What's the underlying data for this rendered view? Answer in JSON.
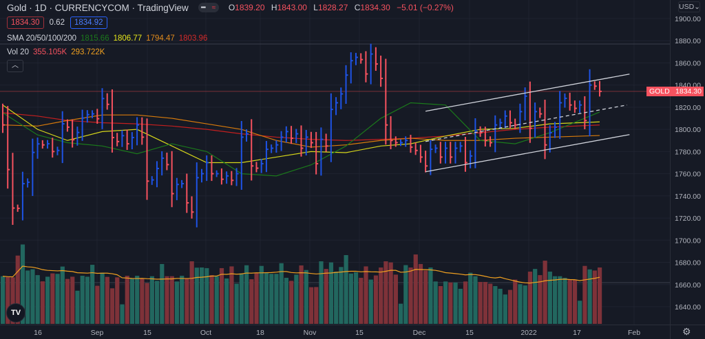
{
  "header": {
    "title": "Gold · 1D · CURRENCYCOM · TradingView",
    "ohlc": {
      "o_label": "O",
      "o": "1839.20",
      "h_label": "H",
      "h": "1843.00",
      "l_label": "L",
      "l": "1828.27",
      "c_label": "C",
      "c": "1834.30",
      "change": "−5.01 (−0.27%)"
    },
    "sell_price": "1834.30",
    "spread": "0.62",
    "buy_price": "1834.92"
  },
  "legend": {
    "sma_label": "SMA 20/50/100/200",
    "sma20": "1815.66",
    "sma50": "1806.77",
    "sma100": "1794.47",
    "sma200": "1803.96",
    "vol_label": "Vol 20",
    "vol": "355.105K",
    "vol_ma": "293.722K",
    "collapse_icon": "chevron-up-icon"
  },
  "price_axis": {
    "currency": "USD",
    "labels": [
      "1900.00",
      "1880.00",
      "1860.00",
      "1840.00",
      "1820.00",
      "1800.00",
      "1780.00",
      "1760.00",
      "1740.00",
      "1720.00",
      "1700.00",
      "1680.00",
      "1660.00",
      "1640.00"
    ],
    "last_symbol": "GOLD",
    "last_price": "1834.30"
  },
  "colors": {
    "up": "#1e53e5",
    "down": "#f7525f",
    "vol_up": "#22675f",
    "vol_down": "#7e3239",
    "sma20": "#1b7a1b",
    "sma50": "#d6d61a",
    "sma100": "#d97b0b",
    "sma200": "#c41f1f",
    "vol_ma": "#f0a020",
    "background": "#161a25"
  },
  "chart_data": {
    "type": "ohlc-bar",
    "symbol": "Gold",
    "interval": "1D",
    "ylim": [
      1630,
      1905
    ],
    "x_ticks": [
      "16",
      "Sep",
      "15",
      "Oct",
      "18",
      "Nov",
      "15",
      "Dec",
      "15",
      "2022",
      "17",
      "Feb"
    ],
    "close": [
      1804,
      1763.7,
      1729,
      1728.7,
      1751,
      1752.3,
      1779.2,
      1786.9,
      1786,
      1787,
      1780,
      1781,
      1805,
      1802,
      1790.6,
      1797.2,
      1810.2,
      1813.3,
      1814,
      1809.6,
      1827.8,
      1822.6,
      1792.6,
      1789,
      1794.3,
      1787,
      1792.6,
      1804,
      1793,
      1753.3,
      1754.4,
      1764.7,
      1774,
      1768.2,
      1742,
      1750.3,
      1751,
      1733.7,
      1725.4,
      1756.4,
      1760,
      1770,
      1760,
      1760,
      1755,
      1758,
      1754,
      1760,
      1793,
      1796,
      1767,
      1765,
      1769,
      1782,
      1783,
      1786,
      1793,
      1798,
      1792,
      1796,
      1783,
      1793,
      1788,
      1769,
      1791,
      1785,
      1818,
      1824,
      1832,
      1849,
      1862,
      1865,
      1863,
      1850,
      1868,
      1859,
      1846,
      1804,
      1790,
      1788,
      1788,
      1790,
      1784,
      1781,
      1775,
      1767,
      1782,
      1783,
      1775,
      1783,
      1775,
      1783,
      1785,
      1770,
      1776,
      1799,
      1797,
      1790,
      1788,
      1804,
      1806,
      1812,
      1806,
      1804,
      1816,
      1830,
      1801,
      1816,
      1814,
      1786,
      1797,
      1802,
      1824,
      1828,
      1822,
      1819,
      1822,
      1808,
      1840,
      1839,
      1834.3
    ],
    "volume_k": [
      300,
      295,
      293,
      430,
      500,
      336,
      344,
      307,
      268,
      297,
      318,
      315,
      361,
      283,
      297,
      209,
      303,
      297,
      372,
      240,
      322,
      296,
      224,
      293,
      123,
      303,
      286,
      303,
      286,
      257,
      300,
      271,
      377,
      300,
      300,
      267,
      303,
      286,
      394,
      354,
      355,
      351,
      307,
      300,
      351,
      286,
      362,
      253,
      318,
      369,
      281,
      322,
      365,
      322,
      315,
      315,
      382,
      290,
      271,
      310,
      368,
      339,
      231,
      232,
      394,
      346,
      387,
      329,
      358,
      433,
      317,
      325,
      290,
      362,
      279,
      305,
      355,
      394,
      387,
      310,
      127,
      370,
      355,
      437,
      377,
      336,
      355,
      267,
      238,
      267,
      261,
      261,
      221,
      267,
      322,
      300,
      264,
      264,
      253,
      238,
      221,
      185,
      214,
      279,
      250,
      242,
      329,
      346,
      307,
      398,
      329,
      300,
      300,
      290,
      279,
      279,
      146,
      365,
      343,
      336,
      355.105
    ],
    "sma": {
      "sample_bar_index": [
        0,
        7,
        13,
        20,
        27,
        34,
        41,
        48,
        55,
        62,
        69,
        76,
        82,
        89,
        96,
        103,
        110,
        120
      ],
      "sma20": [
        1815,
        1795,
        1788,
        1785,
        1778,
        1787,
        1780,
        1760,
        1758,
        1768,
        1785,
        1810,
        1824,
        1822,
        1790,
        1787,
        1797,
        1815.66
      ],
      "sma50": [
        1822,
        1800,
        1790,
        1798,
        1800,
        1785,
        1770,
        1770,
        1775,
        1780,
        1779,
        1785,
        1787,
        1794,
        1800,
        1801,
        1805,
        1806.77
      ],
      "sma100": [
        1804,
        1803,
        1808,
        1813,
        1813,
        1810,
        1805,
        1800,
        1790,
        1784,
        1786,
        1790,
        1792,
        1790,
        1790,
        1792,
        1793,
        1794.47
      ],
      "sma200": [
        1815,
        1812,
        1808,
        1806,
        1805,
        1803,
        1800,
        1796,
        1793,
        1791,
        1790,
        1791,
        1792,
        1794,
        1797,
        1800,
        1802,
        1803.96
      ]
    },
    "drawings": {
      "channel_upper": {
        "from_bar": 85,
        "to_bar": 126,
        "from_price": 1816.4,
        "to_price": 1849.9
      },
      "channel_mid": {
        "from_bar": 85,
        "to_bar": 125.5,
        "from_price": 1789.1,
        "to_price": 1822
      },
      "channel_lower": {
        "from_bar": 85,
        "to_bar": 126,
        "from_price": 1761.8,
        "to_price": 1795.3
      }
    },
    "last_price_line": 1834.3,
    "grid": true
  }
}
